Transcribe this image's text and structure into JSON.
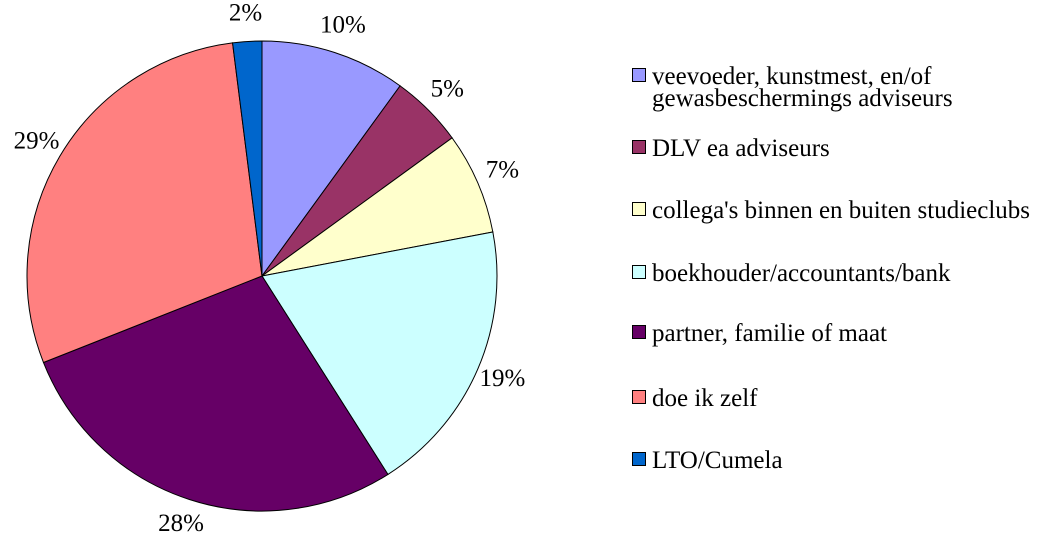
{
  "chart_data": {
    "type": "pie",
    "categories": [
      "veevoeder, kunstmest, en/of gewasbeschermings adviseurs",
      "DLV ea adviseurs",
      "collega's binnen en buiten studieclubs",
      "boekhouder/accountants/bank",
      "partner, familie of maat",
      "doe ik zelf",
      "LTO/Cumela"
    ],
    "values": [
      10,
      5,
      7,
      19,
      28,
      29,
      2
    ],
    "value_labels": [
      "10%",
      "5%",
      "7%",
      "19%",
      "28%",
      "29%",
      "2%"
    ],
    "colors": [
      "#9999ff",
      "#993366",
      "#ffffcc",
      "#ccffff",
      "#660066",
      "#ff8080",
      "#0066cc"
    ],
    "legend": "right"
  }
}
